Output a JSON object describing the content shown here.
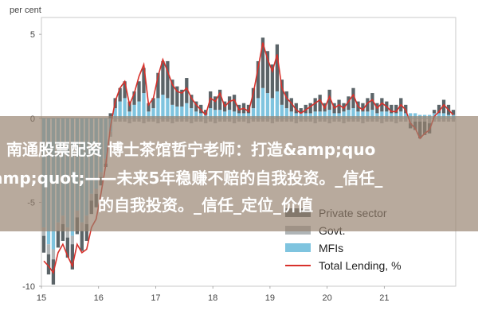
{
  "chart_data": {
    "type": "bar",
    "ylabel": "per cent",
    "ylim": [
      -10,
      6
    ],
    "yticks": [
      5,
      0,
      -5,
      -10
    ],
    "xticks": [
      "15",
      "16",
      "17",
      "18",
      "19",
      "20",
      "21"
    ],
    "x_start": 2015.0,
    "x_end": 2022.25,
    "grid": false,
    "legend_position": "bottom-right",
    "colors": {
      "mfis": "#7fc4df",
      "govt": "#b0b5b7",
      "private": "#5b6468",
      "total": "#d8312b"
    },
    "legend": [
      "Private sector",
      "Govt.",
      "MFIs",
      "Total Lending, %"
    ],
    "series": [
      {
        "name": "MFIs",
        "values": [
          -6.5,
          -7.5,
          -7.8,
          -6.2,
          -5.8,
          -6.5,
          -7.0,
          -5.5,
          -6.2,
          -5.8,
          -4.5,
          -4.2,
          -3.2,
          -2.4,
          -0.8,
          0.6,
          1.0,
          1.2,
          0.4,
          0.8,
          1.0,
          1.5,
          0.4,
          0.6,
          1.2,
          1.4,
          1.2,
          0.8,
          0.7,
          0.7,
          0.9,
          0.6,
          0.4,
          0.3,
          0.2,
          0.6,
          0.5,
          0.5,
          0.4,
          0.5,
          0.4,
          0.3,
          0.3,
          0.3,
          0.6,
          1.2,
          1.8,
          1.5,
          1.2,
          1.6,
          0.8,
          0.6,
          0.4,
          0.3,
          0.3,
          0.3,
          0.3,
          0.4,
          0.4,
          0.4,
          0.5,
          0.3,
          0.3,
          0.4,
          0.5,
          0.6,
          0.4,
          0.4,
          0.4,
          0.5,
          0.3,
          0.4,
          0.4,
          0.3,
          0.3,
          0.4,
          0.3,
          0.3,
          0.3,
          0.2,
          0.2,
          0.2,
          0.3,
          0.3,
          0.3,
          0.2,
          0.2
        ]
      },
      {
        "name": "Govt.",
        "values": [
          -0.5,
          -0.6,
          -0.6,
          -0.5,
          -0.5,
          -0.6,
          -0.5,
          -0.4,
          -0.5,
          -0.5,
          -0.4,
          -0.3,
          -0.3,
          -0.3,
          -0.3,
          -0.2,
          -0.2,
          -0.2,
          -0.3,
          -0.2,
          -0.2,
          -0.3,
          -0.2,
          -0.2,
          -0.3,
          -0.2,
          -0.2,
          -0.3,
          -0.2,
          -0.2,
          -0.2,
          -0.3,
          -0.2,
          -0.2,
          -0.3,
          -0.2,
          -0.3,
          -0.2,
          -0.2,
          -0.2,
          -0.3,
          -0.2,
          -0.2,
          -0.3,
          -0.2,
          -0.2,
          -0.2,
          -0.2,
          -0.3,
          -0.2,
          -0.2,
          -0.2,
          -0.2,
          -0.3,
          -0.2,
          -0.2,
          -0.2,
          -0.3,
          -0.2,
          -0.2,
          -0.3,
          -0.2,
          -0.2,
          -0.3,
          -0.2,
          -0.2,
          -0.2,
          -0.3,
          -0.2,
          -0.2,
          -0.2,
          -0.3,
          -0.2,
          -0.2,
          -0.3,
          -0.2,
          -0.2,
          -0.3,
          -0.2,
          -0.2,
          -0.2,
          -0.3,
          -0.2,
          -0.2,
          -0.2,
          -0.2,
          -0.2
        ]
      },
      {
        "name": "Private sector",
        "values": [
          -1.0,
          -1.2,
          -1.5,
          -1.0,
          -1.0,
          -1.2,
          -1.5,
          -1.0,
          -1.2,
          -1.0,
          -0.8,
          -0.8,
          -0.5,
          -0.2,
          0.3,
          0.6,
          0.8,
          1.0,
          0.6,
          0.8,
          1.2,
          1.5,
          0.5,
          0.6,
          1.5,
          2.0,
          2.2,
          1.5,
          1.2,
          1.0,
          1.5,
          0.8,
          0.6,
          0.5,
          0.3,
          1.0,
          0.8,
          1.2,
          0.6,
          0.8,
          1.0,
          0.5,
          0.6,
          0.5,
          1.2,
          2.2,
          3.0,
          2.5,
          2.0,
          2.8,
          1.5,
          1.0,
          0.8,
          0.6,
          0.3,
          0.5,
          0.6,
          0.8,
          1.0,
          0.5,
          1.2,
          0.6,
          0.8,
          0.5,
          0.8,
          1.2,
          0.6,
          0.5,
          0.8,
          1.0,
          0.6,
          0.8,
          0.6,
          0.5,
          0.5,
          0.8,
          0.5,
          -0.3,
          -0.5,
          -1.0,
          -0.8,
          -0.6,
          0.2,
          0.5,
          0.8,
          0.6,
          0.3
        ]
      },
      {
        "name": "Total Lending, %",
        "values": [
          -8.5,
          -8.8,
          -9.2,
          -8.0,
          -7.5,
          -8.2,
          -8.8,
          -7.5,
          -8.0,
          -7.8,
          -6.5,
          -6.0,
          -4.5,
          -2.8,
          -0.5,
          1.0,
          1.8,
          2.2,
          0.8,
          1.5,
          2.5,
          3.2,
          0.8,
          1.2,
          2.5,
          3.5,
          2.8,
          2.0,
          1.6,
          1.5,
          1.8,
          1.2,
          0.8,
          0.5,
          0.2,
          1.2,
          1.0,
          1.5,
          0.7,
          1.0,
          1.1,
          0.5,
          0.6,
          0.4,
          1.5,
          3.0,
          4.5,
          3.5,
          2.8,
          3.8,
          1.8,
          1.2,
          0.9,
          0.5,
          0.3,
          0.5,
          0.7,
          0.9,
          1.1,
          0.6,
          1.3,
          0.6,
          0.8,
          0.6,
          1.0,
          1.4,
          0.7,
          0.5,
          0.9,
          1.1,
          0.6,
          0.9,
          0.7,
          0.4,
          0.4,
          0.8,
          0.5,
          -0.3,
          -0.6,
          -1.2,
          -0.9,
          -0.7,
          0.1,
          0.4,
          0.8,
          0.5,
          0.2
        ]
      }
    ]
  },
  "overlay": {
    "line1": "南通股票配资 博士茶馆哲宁老师：打造&amp;quo",
    "line2": "amp;quot;——未来5年稳赚不赔的自我投资。_信任_",
    "line3": "的自我投资。_信任_定位_价值"
  }
}
